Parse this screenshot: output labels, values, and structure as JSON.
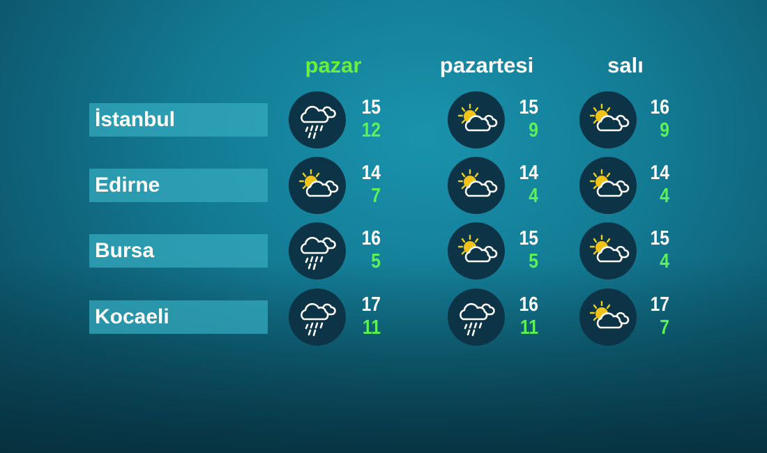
{
  "days": [
    {
      "label": "pazar",
      "color": "#6bef3c"
    },
    {
      "label": "pazartesi",
      "color": "#ffffff"
    },
    {
      "label": "salı",
      "color": "#ffffff"
    }
  ],
  "rows": [
    {
      "city": "İstanbul",
      "forecast": [
        {
          "icon": "rain-icon",
          "high": "15",
          "low": "12"
        },
        {
          "icon": "partly-sunny-icon",
          "high": "15",
          "low": "9"
        },
        {
          "icon": "partly-sunny-icon",
          "high": "16",
          "low": "9"
        }
      ]
    },
    {
      "city": "Edirne",
      "forecast": [
        {
          "icon": "partly-sunny-icon",
          "high": "14",
          "low": "7"
        },
        {
          "icon": "partly-sunny-icon",
          "high": "14",
          "low": "4"
        },
        {
          "icon": "partly-sunny-icon",
          "high": "14",
          "low": "4"
        }
      ]
    },
    {
      "city": "Bursa",
      "forecast": [
        {
          "icon": "rain-icon",
          "high": "16",
          "low": "5"
        },
        {
          "icon": "partly-sunny-icon",
          "high": "15",
          "low": "5"
        },
        {
          "icon": "partly-sunny-icon",
          "high": "15",
          "low": "4"
        }
      ]
    },
    {
      "city": "Kocaeli",
      "forecast": [
        {
          "icon": "rain-icon",
          "high": "17",
          "low": "11"
        },
        {
          "icon": "rain-icon",
          "high": "16",
          "low": "11"
        },
        {
          "icon": "partly-sunny-icon",
          "high": "17",
          "low": "7"
        }
      ]
    }
  ],
  "colors": {
    "high": "#ffffff",
    "low": "#5ef05a",
    "circle": "#0d3446",
    "label_bg": "#34aabe"
  }
}
